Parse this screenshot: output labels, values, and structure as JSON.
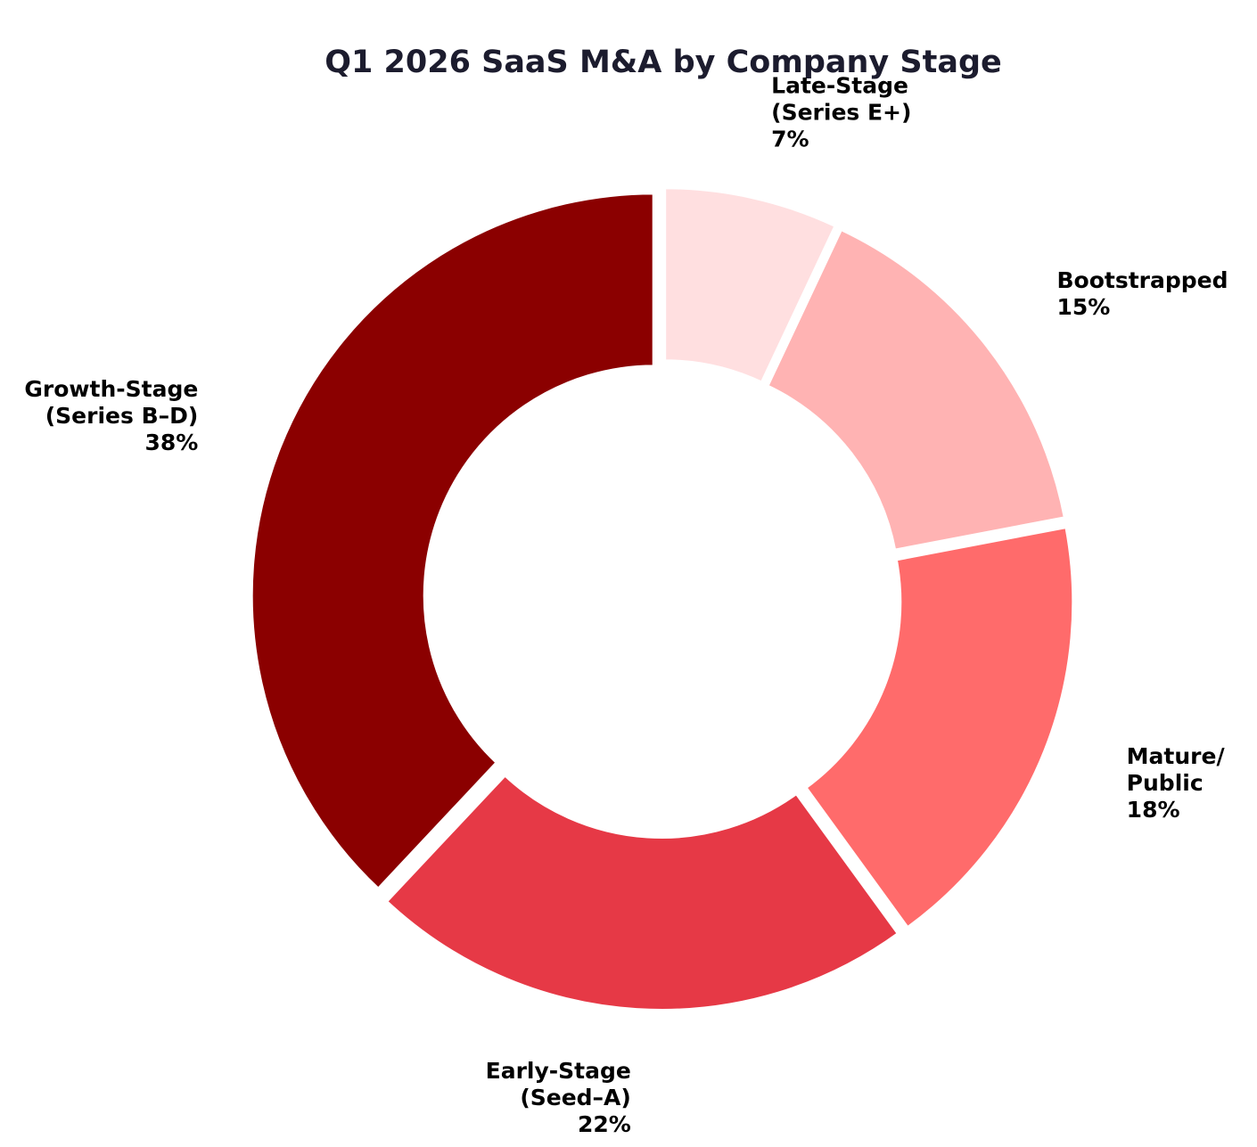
{
  "chart_data": {
    "type": "pie",
    "title": "Q1 2026 SaaS M&A by Company Stage",
    "donut": true,
    "start": "top",
    "direction": "clockwise",
    "slices": [
      {
        "label_lines": [
          "Late-Stage",
          "(Series E+)"
        ],
        "value": 7,
        "value_label": "7%",
        "color": "#ffdfe0"
      },
      {
        "label_lines": [
          "Bootstrapped"
        ],
        "value": 15,
        "value_label": "15%",
        "color": "#ffb3b3"
      },
      {
        "label_lines": [
          "Mature/",
          "Public"
        ],
        "value": 18,
        "value_label": "18%",
        "color": "#ff6b6b"
      },
      {
        "label_lines": [
          "Early-Stage",
          "(Seed–A)"
        ],
        "value": 22,
        "value_label": "22%",
        "color": "#e63946"
      },
      {
        "label_lines": [
          "Growth-Stage",
          "(Series B–D)"
        ],
        "value": 38,
        "value_label": "38%",
        "color": "#8b0000"
      }
    ]
  }
}
